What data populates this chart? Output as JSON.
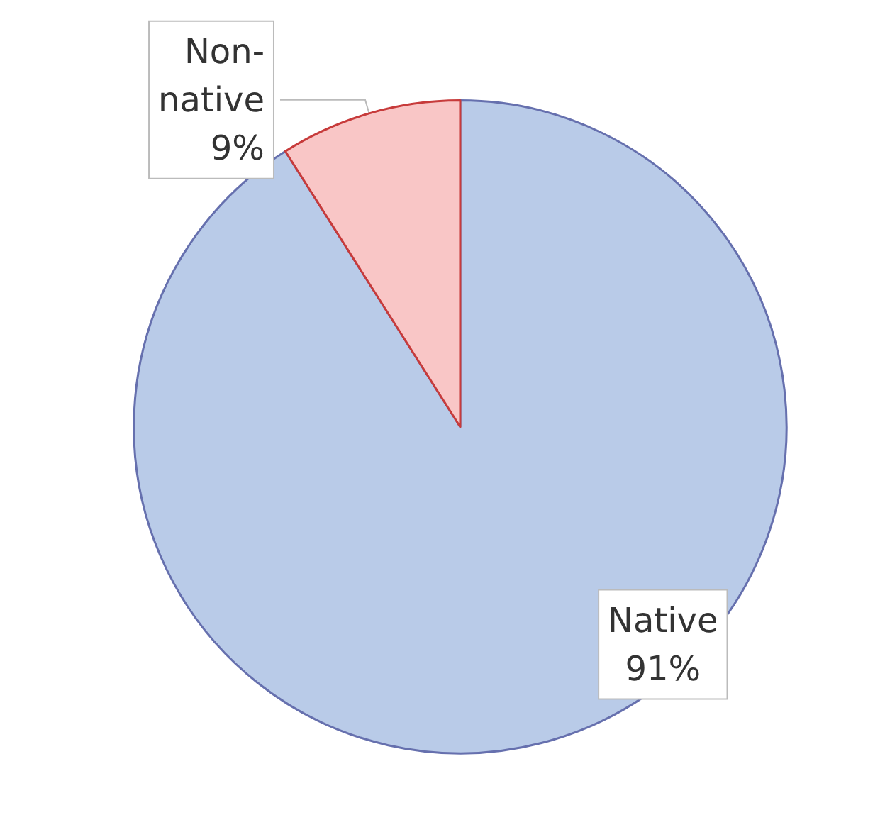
{
  "chart_data": {
    "type": "pie",
    "categories": [
      "Native",
      "Non-native"
    ],
    "values": [
      91,
      9
    ],
    "value_labels": [
      "91%",
      "9%"
    ],
    "colors": [
      "#b9cbe8",
      "#f9c6c6"
    ]
  }
}
